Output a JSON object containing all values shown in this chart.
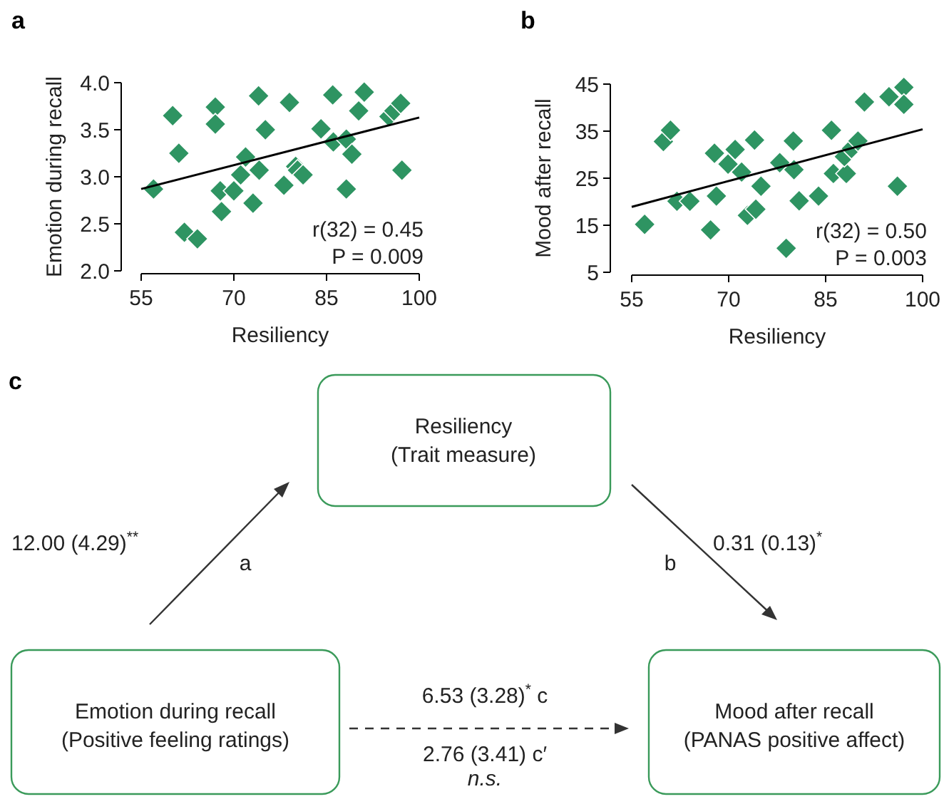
{
  "chart_data": [
    {
      "type": "scatter",
      "title": "a",
      "xlabel": "Resiliency",
      "ylabel": "Emotion during recall",
      "xlim": [
        55,
        100
      ],
      "xticks": [
        55,
        70,
        85,
        100
      ],
      "ylim": [
        2,
        4
      ],
      "yticks": [
        {
          "value": 2,
          "label": "2.0"
        },
        {
          "value": 2.5,
          "label": "2.5"
        },
        {
          "value": 3,
          "label": "3.0"
        },
        {
          "value": 3.5,
          "label": "3.5"
        },
        {
          "value": 4,
          "label": "4.0"
        }
      ],
      "grid": false,
      "annotations": [
        "r(32) = 0.45",
        "P = 0.009"
      ],
      "series": [
        {
          "type": "scatter",
          "marker": "diamond",
          "color": "#2e9462",
          "x": [
            57,
            60.1,
            61.1,
            62,
            64.1,
            67,
            67,
            67.8,
            68,
            70,
            71.1,
            71.9,
            73.1,
            74,
            74.1,
            75.1,
            78.1,
            79,
            80,
            80.3,
            81.2,
            84.1,
            86,
            86.1,
            88.2,
            88.2,
            89.1,
            90.2,
            91.1,
            95.1,
            95.9,
            97,
            97.2
          ],
          "values": [
            2.87,
            3.65,
            3.25,
            2.41,
            2.34,
            3.74,
            3.56,
            2.85,
            2.63,
            2.85,
            3.02,
            3.21,
            2.72,
            3.86,
            3.07,
            3.5,
            2.91,
            3.79,
            3.11,
            3.07,
            3.02,
            3.51,
            3.87,
            3.37,
            3.4,
            2.87,
            3.24,
            3.7,
            3.9,
            3.64,
            3.7,
            3.78,
            3.07
          ]
        },
        {
          "type": "line",
          "marker": "none",
          "color": "#000000",
          "x": [
            55,
            100
          ],
          "values": [
            2.87,
            3.63
          ]
        }
      ]
    },
    {
      "type": "scatter",
      "title": "b",
      "xlabel": "Resiliency",
      "ylabel": "Mood after recall",
      "xlim": [
        55,
        100
      ],
      "xticks": [
        55,
        70,
        85,
        100
      ],
      "ylim": [
        5,
        45
      ],
      "yticks": [
        5,
        15,
        25,
        35,
        45
      ],
      "grid": false,
      "annotations": [
        "r(32) = 0.50",
        "P = 0.003"
      ],
      "series": [
        {
          "type": "scatter",
          "marker": "diamond",
          "color": "#2e9462",
          "x": [
            57,
            59.9,
            61,
            62,
            64,
            67.2,
            67.8,
            68.1,
            69.9,
            71,
            72,
            72.9,
            74,
            74.2,
            75,
            77.9,
            78.9,
            80,
            80.1,
            80.9,
            83.9,
            85.9,
            86.2,
            88.2,
            87.9,
            89,
            90,
            91,
            94.8,
            96.1,
            97.1,
            97.1
          ],
          "values": [
            15.2,
            32.8,
            35.2,
            20.1,
            20.1,
            14,
            30.3,
            21.2,
            28,
            31.1,
            26.3,
            17.1,
            33.1,
            18.4,
            23.3,
            28.3,
            10.1,
            32.9,
            26.8,
            20.2,
            21.2,
            35.2,
            26,
            26,
            29.6,
            31.3,
            32.9,
            41.2,
            42.3,
            23.3,
            44.3,
            40.7
          ]
        },
        {
          "type": "line",
          "marker": "none",
          "color": "#000000",
          "x": [
            55,
            100
          ],
          "values": [
            18.9,
            35.4
          ]
        }
      ]
    },
    {
      "type": "other",
      "title": "c",
      "annotations": [
        "Resiliency",
        "(Trait measure)",
        "Emotion during recall",
        "(Positive feeling ratings)",
        "Mood after recall",
        "(PANAS positive affect)",
        "12.00 (4.29)$^{**}$",
        "a",
        "0.31 (0.13)$^{*}$",
        "b",
        "6.53 (3.28)$^{*}$ c",
        "2.76 (3.41) c′",
        "n.s."
      ]
    }
  ]
}
